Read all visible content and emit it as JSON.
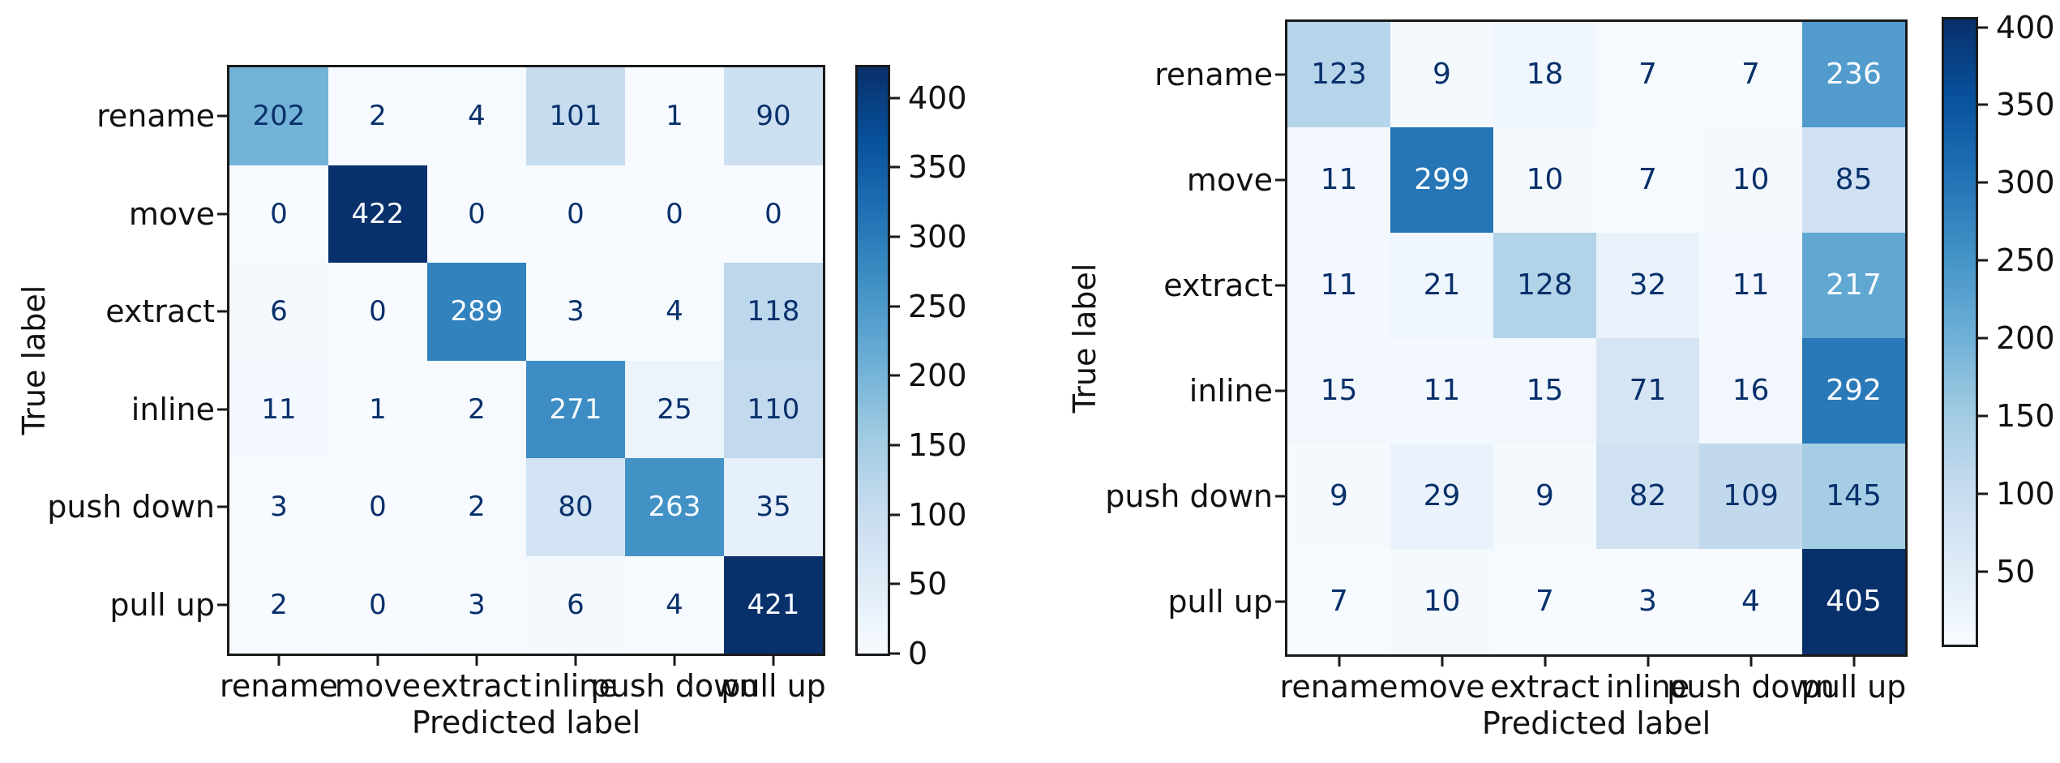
{
  "figure": {
    "description_left": "confusion matrix with colorbar",
    "description_right": "confusion matrix with colorbar"
  },
  "chart_data": [
    {
      "type": "heatmap",
      "xlabel": "Predicted label",
      "ylabel": "True label",
      "row_labels": [
        "rename",
        "move",
        "extract",
        "inline",
        "push down",
        "pull up"
      ],
      "col_labels": [
        "rename",
        "move",
        "extract",
        "inline",
        "push down",
        "pull up"
      ],
      "matrix": [
        [
          202,
          2,
          4,
          101,
          1,
          90
        ],
        [
          0,
          422,
          0,
          0,
          0,
          0
        ],
        [
          6,
          0,
          289,
          3,
          4,
          118
        ],
        [
          11,
          1,
          2,
          271,
          25,
          110
        ],
        [
          3,
          0,
          2,
          80,
          263,
          35
        ],
        [
          2,
          0,
          3,
          6,
          4,
          421
        ]
      ],
      "vmin": 0,
      "vmax": 422,
      "colorbar_ticks": [
        0,
        50,
        100,
        150,
        200,
        250,
        300,
        350,
        400
      ],
      "colormap": "Blues",
      "grid": "off",
      "legend": "colorbar-right"
    },
    {
      "type": "heatmap",
      "xlabel": "Predicted label",
      "ylabel": "True label",
      "row_labels": [
        "rename",
        "move",
        "extract",
        "inline",
        "push down",
        "pull up"
      ],
      "col_labels": [
        "rename",
        "move",
        "extract",
        "inline",
        "push down",
        "pull up"
      ],
      "matrix": [
        [
          123,
          9,
          18,
          7,
          7,
          236
        ],
        [
          11,
          299,
          10,
          7,
          10,
          85
        ],
        [
          11,
          21,
          128,
          32,
          11,
          217
        ],
        [
          15,
          11,
          15,
          71,
          16,
          292
        ],
        [
          9,
          29,
          9,
          82,
          109,
          145
        ],
        [
          7,
          10,
          7,
          3,
          4,
          405
        ]
      ],
      "vmin": 3,
      "vmax": 405,
      "colorbar_ticks": [
        50,
        100,
        150,
        200,
        250,
        300,
        350,
        400
      ],
      "colormap": "Blues",
      "grid": "off",
      "legend": "colorbar-right"
    }
  ],
  "colors": {
    "colormap_stops": [
      "#f7fbff",
      "#deebf7",
      "#c6dbef",
      "#9ecae1",
      "#6baed6",
      "#4292c6",
      "#2171b5",
      "#08519c",
      "#08306b"
    ],
    "cell_text_dark": "#08306b",
    "cell_text_light": "#f7fbff",
    "axis_text": "#111111",
    "spine": "#1a1a1a",
    "background": "#ffffff"
  }
}
